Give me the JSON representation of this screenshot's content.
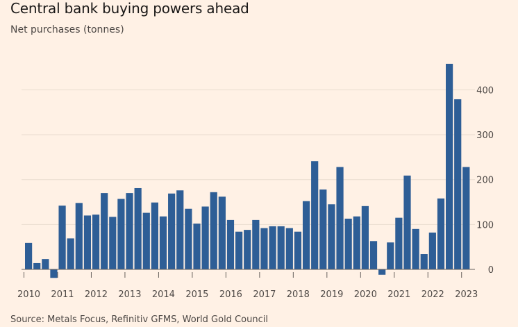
{
  "title": "Central bank buying powers ahead",
  "subtitle": "Net purchases (tonnes)",
  "source": "Source: Metals Focus, Refinitiv GFMS, World Gold Council",
  "colors": {
    "background": "#fff1e5",
    "bar": "#2e5e96",
    "gridline": "#e9dccf",
    "zeroline": "#66605c"
  },
  "chart_data": {
    "type": "bar",
    "title": "Central bank buying powers ahead",
    "ylabel": "Net purchases (tonnes)",
    "xlabel": "",
    "ylim": [
      -20,
      460
    ],
    "yticks": [
      0,
      100,
      200,
      300,
      400
    ],
    "y_axis_side": "right",
    "grid": true,
    "categories": [
      "2010 Q1",
      "2010 Q2",
      "2010 Q3",
      "2010 Q4",
      "2011 Q1",
      "2011 Q2",
      "2011 Q3",
      "2011 Q4",
      "2012 Q1",
      "2012 Q2",
      "2012 Q3",
      "2012 Q4",
      "2013 Q1",
      "2013 Q2",
      "2013 Q3",
      "2013 Q4",
      "2014 Q1",
      "2014 Q2",
      "2014 Q3",
      "2014 Q4",
      "2015 Q1",
      "2015 Q2",
      "2015 Q3",
      "2015 Q4",
      "2016 Q1",
      "2016 Q2",
      "2016 Q3",
      "2016 Q4",
      "2017 Q1",
      "2017 Q2",
      "2017 Q3",
      "2017 Q4",
      "2018 Q1",
      "2018 Q2",
      "2018 Q3",
      "2018 Q4",
      "2019 Q1",
      "2019 Q2",
      "2019 Q3",
      "2019 Q4",
      "2020 Q1",
      "2020 Q2",
      "2020 Q3",
      "2020 Q4",
      "2021 Q1",
      "2021 Q2",
      "2021 Q3",
      "2021 Q4",
      "2022 Q1",
      "2022 Q2",
      "2022 Q3",
      "2022 Q4",
      "2023 Q1"
    ],
    "values": [
      59,
      14,
      23,
      -19,
      142,
      69,
      148,
      120,
      122,
      170,
      117,
      157,
      170,
      181,
      126,
      149,
      118,
      169,
      176,
      135,
      102,
      140,
      172,
      162,
      110,
      84,
      88,
      110,
      92,
      96,
      96,
      92,
      84,
      152,
      241,
      178,
      145,
      228,
      113,
      118,
      141,
      63,
      -12,
      60,
      115,
      209,
      90,
      34,
      82,
      158,
      458,
      379,
      228
    ],
    "x_tick_labels": [
      "2010",
      "2011",
      "2012",
      "2013",
      "2014",
      "2015",
      "2016",
      "2017",
      "2018",
      "2019",
      "2020",
      "2021",
      "2022",
      "2023"
    ]
  }
}
